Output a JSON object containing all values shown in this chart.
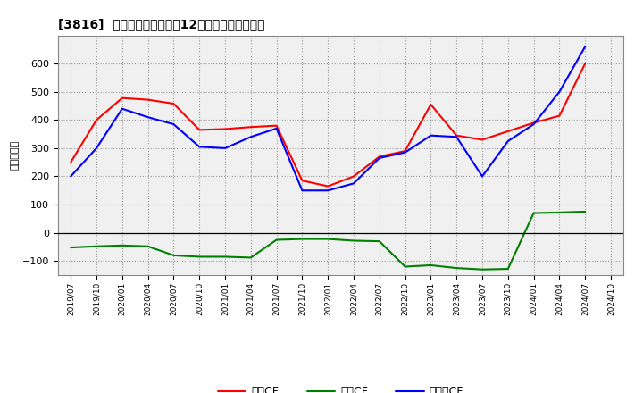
{
  "title": "[3816]  キャッシュフローの12か月移動合計の推移",
  "ylabel": "（百万円）",
  "background_color": "#ffffff",
  "plot_bg_color": "#f5f5f5",
  "grid_color": "#aaaaaa",
  "x_labels": [
    "2019/07",
    "2019/10",
    "2020/01",
    "2020/04",
    "2020/07",
    "2020/10",
    "2021/01",
    "2021/04",
    "2021/07",
    "2021/10",
    "2022/01",
    "2022/04",
    "2022/07",
    "2022/10",
    "2023/01",
    "2023/04",
    "2023/07",
    "2023/10",
    "2024/01",
    "2024/04",
    "2024/07",
    "2024/10"
  ],
  "営業CF": [
    250,
    400,
    478,
    472,
    458,
    365,
    368,
    375,
    380,
    185,
    165,
    200,
    270,
    290,
    455,
    345,
    330,
    360,
    390,
    415,
    600,
    null
  ],
  "投資CF": [
    -52,
    -48,
    -45,
    -48,
    -80,
    -85,
    -85,
    -88,
    -25,
    -22,
    -22,
    -28,
    -30,
    -120,
    -115,
    -125,
    -130,
    -128,
    70,
    72,
    75,
    null
  ],
  "フリーCF": [
    200,
    300,
    440,
    410,
    385,
    305,
    300,
    340,
    370,
    150,
    150,
    175,
    265,
    285,
    345,
    340,
    200,
    325,
    385,
    500,
    660,
    null
  ],
  "line_colors": {
    "営業CF": "#ff0000",
    "投資CF": "#008000",
    "フリーCF": "#0000ff"
  },
  "ylim": [
    -150,
    700
  ],
  "yticks": [
    -100,
    0,
    100,
    200,
    300,
    400,
    500,
    600
  ],
  "legend_labels": [
    "営業CF",
    "投資CF",
    "フリーCF"
  ]
}
